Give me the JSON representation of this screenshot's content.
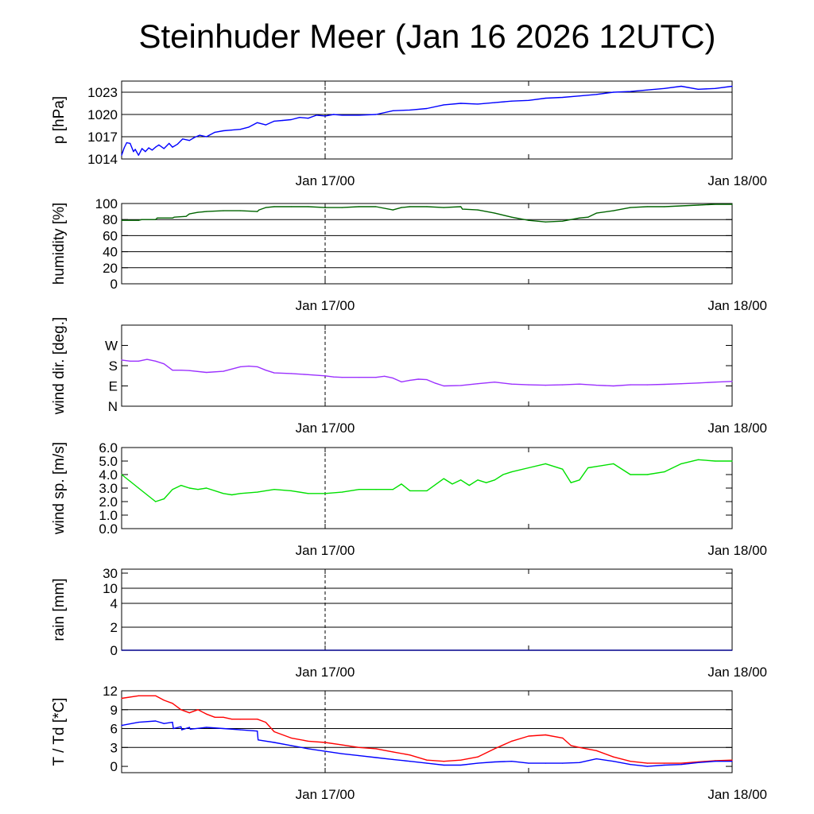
{
  "title": "Steinhuder Meer (Jan 16 2026 12UTC)",
  "chart_data": [
    {
      "type": "line",
      "id": "pressure",
      "ylabel": "p [hPa]",
      "ylim": [
        1014,
        1024.5
      ],
      "yticks": [
        1014,
        1017,
        1020,
        1023
      ],
      "ytick_labels": [
        "1014",
        "1017",
        "1020",
        "1023"
      ],
      "grid_y": [
        1017,
        1020,
        1023
      ],
      "xlim": [
        0,
        36
      ],
      "xticks": [
        12,
        36
      ],
      "xtick_labels": [
        "Jan 17/00",
        "Jan 18/00"
      ],
      "vline": 12,
      "series": [
        {
          "name": "pressure",
          "color": "#0000ff",
          "x": [
            0,
            0.15,
            0.3,
            0.5,
            0.7,
            0.8,
            1.0,
            1.2,
            1.4,
            1.6,
            1.8,
            2.0,
            2.2,
            2.5,
            2.8,
            3.0,
            3.3,
            3.6,
            4.0,
            4.3,
            4.6,
            5.0,
            5.5,
            6.0,
            6.5,
            7.0,
            7.5,
            8.0,
            8.5,
            9.0,
            9.5,
            10.0,
            10.5,
            11.0,
            11.5,
            12.0,
            12.5,
            13.0,
            14.0,
            15.0,
            16.0,
            17.0,
            18.0,
            19.0,
            20.0,
            21.0,
            22.0,
            23.0,
            24.0,
            25.0,
            26.0,
            27.0,
            28.0,
            29.0,
            30.0,
            31.0,
            32.0,
            33.0,
            34.0,
            35.0,
            36.0
          ],
          "y": [
            1014.5,
            1015.5,
            1016.2,
            1016.1,
            1015.0,
            1015.3,
            1014.5,
            1015.4,
            1015.0,
            1015.5,
            1015.2,
            1015.6,
            1015.9,
            1015.4,
            1016.1,
            1015.6,
            1016.0,
            1016.7,
            1016.5,
            1016.9,
            1017.2,
            1017.0,
            1017.6,
            1017.8,
            1017.9,
            1018.0,
            1018.3,
            1018.9,
            1018.6,
            1019.1,
            1019.2,
            1019.3,
            1019.6,
            1019.5,
            1019.9,
            1019.8,
            1020.0,
            1019.9,
            1019.9,
            1020.0,
            1020.5,
            1020.6,
            1020.8,
            1021.3,
            1021.5,
            1021.4,
            1021.6,
            1021.8,
            1021.9,
            1022.2,
            1022.3,
            1022.5,
            1022.7,
            1023.0,
            1023.1,
            1023.3,
            1023.5,
            1023.8,
            1023.4,
            1023.5,
            1023.8
          ]
        }
      ]
    },
    {
      "type": "line",
      "id": "humidity",
      "ylabel": "humidity [%]",
      "ylim": [
        0,
        100
      ],
      "yticks": [
        0,
        20,
        40,
        60,
        80,
        100
      ],
      "ytick_labels": [
        "0",
        "20",
        "40",
        "60",
        "80",
        "100"
      ],
      "grid_y": [
        20,
        40,
        60,
        80
      ],
      "xlim": [
        0,
        36
      ],
      "xticks": [
        12,
        36
      ],
      "xtick_labels": [
        "Jan 17/00",
        "Jan 18/00"
      ],
      "vline": 12,
      "series": [
        {
          "name": "humidity",
          "color": "#006400",
          "x": [
            0,
            1.0,
            1.2,
            2.0,
            2.1,
            3.0,
            3.1,
            3.8,
            4.0,
            4.5,
            5.0,
            6.0,
            7.0,
            8.0,
            8.1,
            8.5,
            9.0,
            10.0,
            11.0,
            12.0,
            13.0,
            14.0,
            15.0,
            16.0,
            16.5,
            17.0,
            18.0,
            19.0,
            20.0,
            20.1,
            21.0,
            22.0,
            23.0,
            24.0,
            25.0,
            26.0,
            26.5,
            27.0,
            27.5,
            28.0,
            29.0,
            30.0,
            31.0,
            32.0,
            33.0,
            34.0,
            35.0,
            36.0
          ],
          "y": [
            79,
            79,
            80,
            80,
            82,
            82,
            83,
            84,
            87,
            89,
            90,
            91,
            91,
            90,
            92,
            95,
            96,
            96,
            96,
            95,
            95,
            96,
            96,
            92,
            95,
            96,
            96,
            95,
            96,
            93,
            92,
            88,
            83,
            79,
            77,
            78,
            80,
            82,
            83,
            88,
            91,
            95,
            96,
            96,
            97,
            98,
            99,
            99
          ]
        }
      ]
    },
    {
      "type": "line",
      "id": "wind_direction",
      "ylabel": "wind dir. [deg.]",
      "ylim": [
        0,
        360
      ],
      "yticks": [
        0,
        90,
        180,
        270
      ],
      "ytick_labels": [
        "N",
        "E",
        "S",
        "W"
      ],
      "grid_y": [],
      "xlim": [
        0,
        36
      ],
      "xticks": [
        12,
        36
      ],
      "xtick_labels": [
        "Jan 17/00",
        "Jan 18/00"
      ],
      "vline": 12,
      "series": [
        {
          "name": "wind direction",
          "color": "#9b30ff",
          "x": [
            0,
            0.5,
            1.0,
            1.5,
            2.0,
            2.5,
            3.0,
            3.5,
            4.0,
            5.0,
            6.0,
            7.0,
            7.5,
            8.0,
            8.5,
            9.0,
            10.0,
            11.0,
            12.0,
            12.5,
            13.0,
            14.0,
            15.0,
            15.5,
            16.0,
            16.5,
            17.0,
            17.5,
            18.0,
            18.5,
            19.0,
            20.0,
            21.0,
            22.0,
            23.0,
            24.0,
            25.0,
            26.0,
            27.0,
            28.0,
            29.0,
            30.0,
            31.0,
            32.0,
            33.0,
            34.0,
            35.0,
            36.0
          ],
          "y": [
            205,
            200,
            200,
            208,
            200,
            188,
            160,
            160,
            158,
            150,
            155,
            175,
            178,
            175,
            160,
            148,
            145,
            140,
            135,
            130,
            128,
            128,
            128,
            133,
            125,
            108,
            115,
            120,
            118,
            102,
            90,
            92,
            100,
            107,
            98,
            95,
            93,
            95,
            98,
            93,
            90,
            95,
            95,
            97,
            100,
            103,
            107,
            110
          ]
        }
      ]
    },
    {
      "type": "line",
      "id": "wind_speed",
      "ylabel": "wind sp. [m/s]",
      "ylim": [
        0,
        6
      ],
      "yticks": [
        0,
        1,
        2,
        3,
        4,
        5,
        6
      ],
      "ytick_labels": [
        "0.0",
        "1.0",
        "2.0",
        "3.0",
        "4.0",
        "5.0",
        "6.0"
      ],
      "grid_y": [],
      "xlim": [
        0,
        36
      ],
      "xticks": [
        12,
        36
      ],
      "xtick_labels": [
        "Jan 17/00",
        "Jan 18/00"
      ],
      "vline": 12,
      "series": [
        {
          "name": "wind speed",
          "color": "#00e000",
          "x": [
            0,
            0.5,
            1.0,
            1.5,
            2.0,
            2.5,
            3.0,
            3.5,
            4.0,
            4.5,
            5.0,
            6.0,
            6.5,
            7.0,
            8.0,
            9.0,
            10.0,
            11.0,
            12.0,
            13.0,
            14.0,
            15.0,
            16.0,
            16.5,
            17.0,
            18.0,
            19.0,
            19.5,
            20.0,
            20.5,
            21.0,
            21.5,
            22.0,
            22.5,
            23.0,
            24.0,
            25.0,
            26.0,
            26.5,
            27.0,
            27.5,
            28.0,
            29.0,
            30.0,
            31.0,
            32.0,
            33.0,
            34.0,
            35.0,
            36.0
          ],
          "y": [
            4.0,
            3.5,
            3.0,
            2.5,
            2.0,
            2.2,
            2.9,
            3.2,
            3.0,
            2.9,
            3.0,
            2.6,
            2.5,
            2.6,
            2.7,
            2.9,
            2.8,
            2.6,
            2.6,
            2.7,
            2.9,
            2.9,
            2.9,
            3.3,
            2.8,
            2.8,
            3.7,
            3.3,
            3.6,
            3.2,
            3.6,
            3.4,
            3.6,
            4.0,
            4.2,
            4.5,
            4.8,
            4.4,
            3.4,
            3.6,
            4.5,
            4.6,
            4.8,
            4.0,
            4.0,
            4.2,
            4.8,
            5.1,
            5.0,
            5.0
          ]
        }
      ]
    },
    {
      "type": "line",
      "id": "rain",
      "ylabel": "rain [mm]",
      "ylim": [
        0,
        30
      ],
      "yticks": [
        0,
        2,
        4,
        10,
        30
      ],
      "ytick_labels": [
        "0",
        "2",
        "4",
        "10",
        "30"
      ],
      "scale": "nonlinear",
      "grid_y": [
        2,
        4,
        10
      ],
      "xlim": [
        0,
        36
      ],
      "xticks": [
        12,
        36
      ],
      "xtick_labels": [
        "Jan 17/00",
        "Jan 18/00"
      ],
      "vline": 12,
      "series": [
        {
          "name": "rain",
          "color": "#00008b",
          "x": [
            0,
            36
          ],
          "y": [
            0,
            0
          ]
        }
      ]
    },
    {
      "type": "line",
      "id": "temperature",
      "ylabel": "T / Td [*C]",
      "ylim": [
        -1,
        12
      ],
      "yticks": [
        0,
        3,
        6,
        9,
        12
      ],
      "ytick_labels": [
        "0",
        "3",
        "6",
        "9",
        "12"
      ],
      "grid_y": [
        3,
        6,
        9
      ],
      "xlim": [
        0,
        36
      ],
      "xticks": [
        12,
        36
      ],
      "xtick_labels": [
        "Jan 17/00",
        "Jan 18/00"
      ],
      "vline": 12,
      "series": [
        {
          "name": "T",
          "color": "#ff0000",
          "x": [
            0,
            1.0,
            2.0,
            2.5,
            3.0,
            3.5,
            4.0,
            4.5,
            5.0,
            5.5,
            6.0,
            6.5,
            7.0,
            8.0,
            8.5,
            9.0,
            10.0,
            11.0,
            12.0,
            13.0,
            14.0,
            15.0,
            16.0,
            17.0,
            18.0,
            19.0,
            20.0,
            21.0,
            22.0,
            23.0,
            24.0,
            25.0,
            26.0,
            26.5,
            27.0,
            28.0,
            29.0,
            30.0,
            31.0,
            32.0,
            33.0,
            34.0,
            35.0,
            36.0
          ],
          "y": [
            10.8,
            11.2,
            11.2,
            10.5,
            10.0,
            9.0,
            8.5,
            9.0,
            8.3,
            7.8,
            7.8,
            7.5,
            7.5,
            7.5,
            7.0,
            5.5,
            4.5,
            4.0,
            3.8,
            3.4,
            3.0,
            2.8,
            2.3,
            1.8,
            1.0,
            0.8,
            1.0,
            1.5,
            2.8,
            4.0,
            4.8,
            5.0,
            4.5,
            3.3,
            3.0,
            2.5,
            1.5,
            0.8,
            0.5,
            0.5,
            0.5,
            0.7,
            0.9,
            1.0
          ]
        }
      ]
    }
  ],
  "dewpoint_series": {
    "name": "Td",
    "color": "#0000ff",
    "x": [
      0,
      1.0,
      2.0,
      2.5,
      3.0,
      3.05,
      3.5,
      3.55,
      4.0,
      4.05,
      5.0,
      6.0,
      7.0,
      8.0,
      8.05,
      9.0,
      10.0,
      11.0,
      12.0,
      13.0,
      14.0,
      15.0,
      16.0,
      17.0,
      18.0,
      19.0,
      20.0,
      21.0,
      22.0,
      23.0,
      24.0,
      25.0,
      26.0,
      27.0,
      28.0,
      29.0,
      30.0,
      31.0,
      32.0,
      33.0,
      34.0,
      35.0,
      36.0
    ],
    "y": [
      6.5,
      7.0,
      7.2,
      6.8,
      7.0,
      6.0,
      6.3,
      5.8,
      6.2,
      5.9,
      6.2,
      6.0,
      5.8,
      5.6,
      4.2,
      3.8,
      3.3,
      2.8,
      2.4,
      2.0,
      1.7,
      1.4,
      1.1,
      0.8,
      0.5,
      0.2,
      0.2,
      0.5,
      0.7,
      0.8,
      0.5,
      0.5,
      0.5,
      0.6,
      1.2,
      0.8,
      0.3,
      0.0,
      0.2,
      0.3,
      0.6,
      0.8,
      0.8
    ]
  }
}
